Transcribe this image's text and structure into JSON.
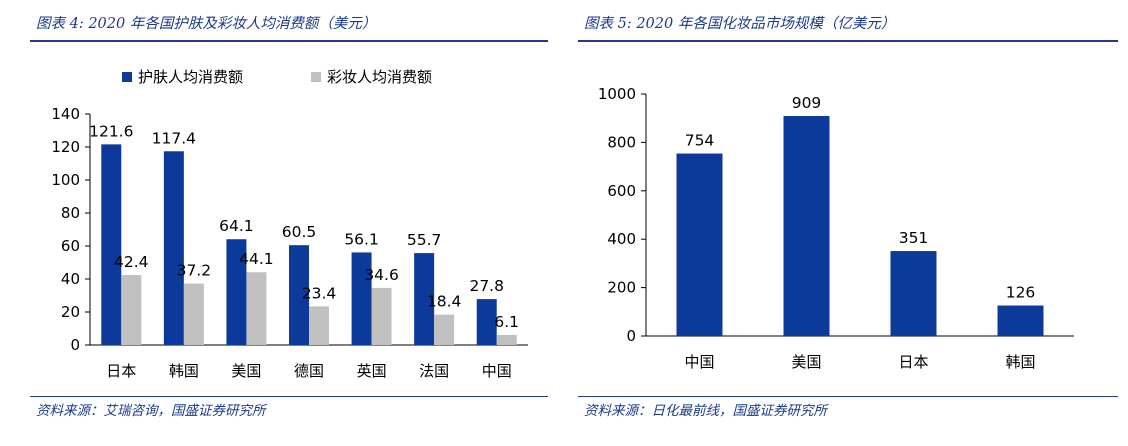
{
  "left": {
    "title": "图表 4:  2020 年各国护肤及彩妆人均消费额（美元）",
    "source": "资料来源：艾瑞咨询，国盛证券研究所"
  },
  "right": {
    "title": "图表 5:  2020 年各国化妆品市场规模（亿美元）",
    "source": "资料来源：日化最前线，国盛证券研究所"
  },
  "chart_data": [
    {
      "type": "bar",
      "title": "图表 4:  2020 年各国护肤及彩妆人均消费额（美元）",
      "categories": [
        "日本",
        "韩国",
        "美国",
        "德国",
        "英国",
        "法国",
        "中国"
      ],
      "series": [
        {
          "name": "护肤人均消费额",
          "values": [
            121.6,
            117.4,
            64.1,
            60.5,
            56.1,
            55.7,
            27.8
          ],
          "labels": [
            "121.6",
            "117.4",
            "64.1",
            "60.5",
            "56.1",
            "55.7",
            "27.8"
          ],
          "color": "#0b3a9a"
        },
        {
          "name": "彩妆人均消费额",
          "values": [
            42.4,
            37.2,
            44.1,
            23.4,
            34.6,
            18.4,
            6.1
          ],
          "labels": [
            "42.4",
            "37.2",
            "44.1",
            "23.4",
            "34.6",
            "18.4",
            "6.1"
          ],
          "color": "#c0c0c0"
        }
      ],
      "yticks": [
        "0",
        "20",
        "40",
        "60",
        "80",
        "100",
        "120",
        "140"
      ],
      "ylim": [
        0,
        140
      ],
      "legend": "top",
      "grid": false
    },
    {
      "type": "bar",
      "title": "图表 5:  2020 年各国化妆品市场规模（亿美元）",
      "categories": [
        "中国",
        "美国",
        "日本",
        "韩国"
      ],
      "series": [
        {
          "values": [
            754,
            909,
            351,
            126
          ],
          "labels": [
            "754",
            "909",
            "351",
            "126"
          ],
          "color": "#0b3a9a"
        }
      ],
      "yticks": [
        "0",
        "200",
        "400",
        "600",
        "800",
        "1000"
      ],
      "ylim": [
        0,
        1000
      ],
      "grid": false
    }
  ]
}
